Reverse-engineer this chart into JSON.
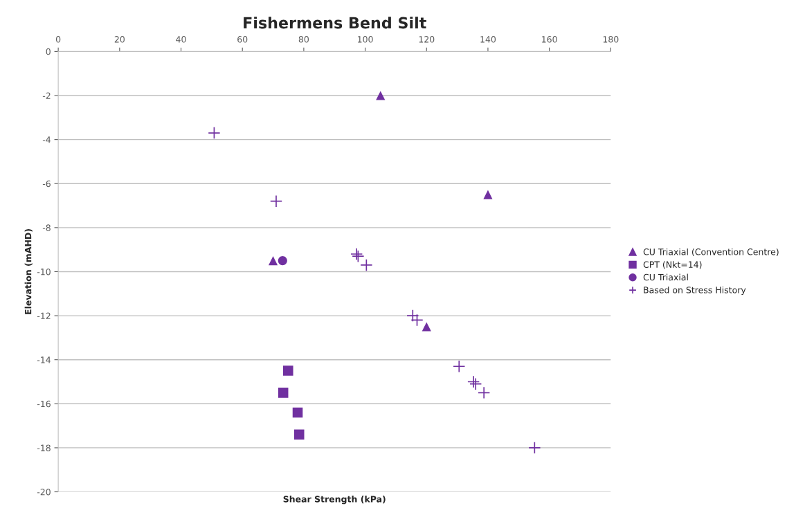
{
  "chart_data": {
    "type": "scatter",
    "title": "Fishermens Bend Silt",
    "xlabel": "Shear Strength (kPa)",
    "ylabel": "Elevation (mAHD)",
    "xlim": [
      0,
      180
    ],
    "xticks": [
      0,
      20,
      40,
      60,
      80,
      100,
      120,
      140,
      160,
      180
    ],
    "ylim": [
      -20,
      0
    ],
    "yticks": [
      -20,
      -18,
      -16,
      -14,
      -12,
      -10,
      -8,
      -6,
      -4,
      -2,
      0
    ],
    "grid": "y",
    "legend": "right",
    "series": [
      {
        "name": "CU Triaxial (Convention Centre)",
        "color": "#7030a0",
        "marker": "triangle",
        "x": [
          105,
          140,
          70,
          120
        ],
        "values": [
          -2,
          -6.5,
          -9.5,
          -12.5
        ]
      },
      {
        "name": "CPT (Nkt=14)",
        "color": "#7030a0",
        "marker": "square",
        "x": [
          74.9,
          73.3,
          78,
          78.5
        ],
        "values": [
          -14.5,
          -15.5,
          -16.4,
          -17.4
        ]
      },
      {
        "name": "CU Triaxial",
        "color": "#7030a0",
        "marker": "circle",
        "x": [
          73.1
        ],
        "values": [
          -9.5
        ]
      },
      {
        "name": "Based on Stress History",
        "color": "#7030a0",
        "marker": "cross",
        "x": [
          50.8,
          71,
          97.2,
          97.7,
          100.4,
          115.5,
          116.9,
          130.6,
          135.3,
          136,
          138.7,
          155.2
        ],
        "values": [
          -3.7,
          -6.8,
          -9.2,
          -9.3,
          -9.7,
          -12.0,
          -12.2,
          -14.3,
          -15.0,
          -15.1,
          -15.5,
          -18.0
        ]
      }
    ]
  }
}
